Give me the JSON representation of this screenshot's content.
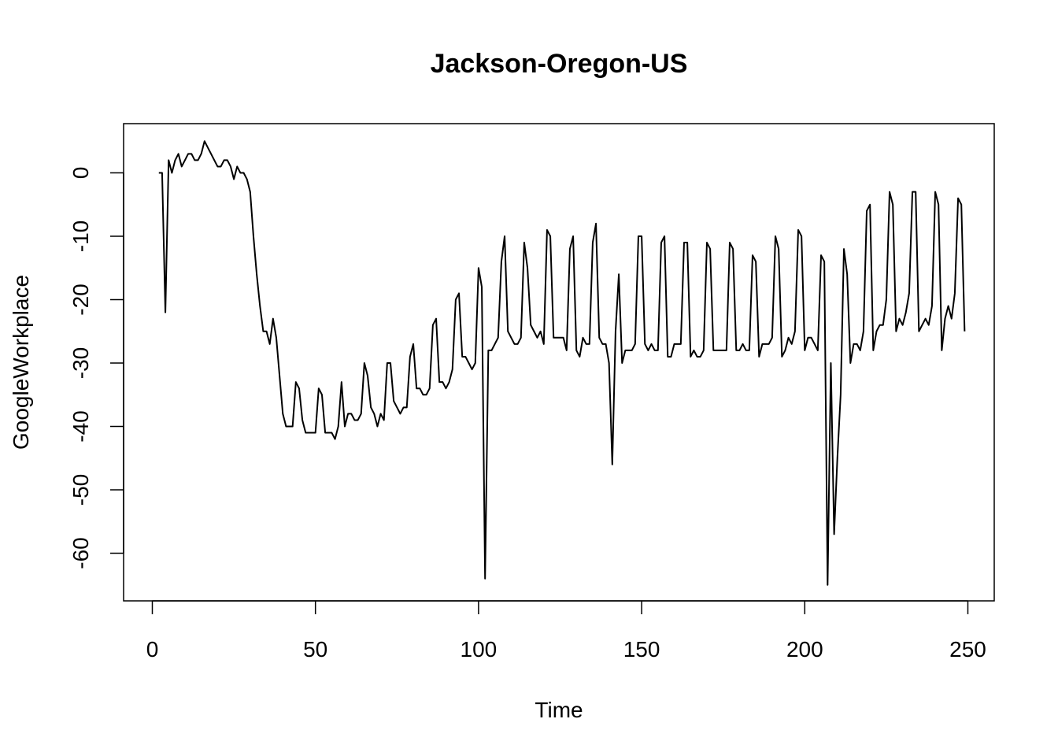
{
  "chart_data": {
    "type": "line",
    "title": "Jackson-Oregon-US",
    "xlabel": "Time",
    "ylabel": "GoogleWorkplace",
    "xlim": [
      0,
      250
    ],
    "ylim": [
      -65,
      5
    ],
    "x_ticks": [
      0,
      50,
      100,
      150,
      200,
      250
    ],
    "x_tick_labels": [
      "0",
      "50",
      "100",
      "150",
      "200",
      "250"
    ],
    "y_ticks": [
      0,
      -10,
      -20,
      -30,
      -40,
      -50,
      -60
    ],
    "y_tick_labels": [
      "0",
      "-10",
      "-20",
      "-30",
      "-40",
      "-50",
      "-60"
    ],
    "grid": false,
    "legend": "none",
    "line_color": "#000000",
    "series": [
      {
        "x_start": 2,
        "values": [
          0,
          0,
          -22,
          2,
          0,
          2,
          3,
          1,
          2,
          3,
          3,
          2,
          2,
          3,
          5,
          4,
          3,
          2,
          1,
          1,
          2,
          2,
          1,
          -1,
          1,
          0,
          0,
          -1,
          -3,
          -10,
          -16,
          -21,
          -25,
          -25,
          -27,
          -23,
          -26,
          -32,
          -38,
          -40,
          -40,
          -40,
          -33,
          -34,
          -39,
          -41,
          -41,
          -41,
          -41,
          -34,
          -35,
          -41,
          -41,
          -41,
          -42,
          -40,
          -33,
          -40,
          -38,
          -38,
          -39,
          -39,
          -38,
          -30,
          -32,
          -37,
          -38,
          -40,
          -38,
          -39,
          -30,
          -30,
          -36,
          -37,
          -38,
          -37,
          -37,
          -29,
          -27,
          -34,
          -34,
          -35,
          -35,
          -34,
          -24,
          -23,
          -33,
          -33,
          -34,
          -33,
          -31,
          -20,
          -19,
          -29,
          -29,
          -30,
          -31,
          -30,
          -15,
          -18,
          -64,
          -28,
          -28,
          -27,
          -26,
          -14,
          -10,
          -25,
          -26,
          -27,
          -27,
          -26,
          -11,
          -15,
          -24,
          -25,
          -26,
          -25,
          -27,
          -9,
          -10,
          -26,
          -26,
          -26,
          -26,
          -28,
          -12,
          -10,
          -28,
          -29,
          -26,
          -27,
          -27,
          -11,
          -8,
          -26,
          -27,
          -27,
          -30,
          -46,
          -25,
          -16,
          -30,
          -28,
          -28,
          -28,
          -27,
          -10,
          -10,
          -27,
          -28,
          -27,
          -28,
          -28,
          -11,
          -10,
          -29,
          -29,
          -27,
          -27,
          -27,
          -11,
          -11,
          -29,
          -28,
          -29,
          -29,
          -28,
          -11,
          -12,
          -28,
          -28,
          -28,
          -28,
          -28,
          -11,
          -12,
          -28,
          -28,
          -27,
          -28,
          -28,
          -13,
          -14,
          -29,
          -27,
          -27,
          -27,
          -26,
          -10,
          -12,
          -29,
          -28,
          -26,
          -27,
          -25,
          -9,
          -10,
          -28,
          -26,
          -26,
          -27,
          -28,
          -13,
          -14,
          -65,
          -30,
          -57,
          -45,
          -35,
          -12,
          -16,
          -30,
          -27,
          -27,
          -28,
          -25,
          -6,
          -5,
          -28,
          -25,
          -24,
          -24,
          -20,
          -3,
          -5,
          -25,
          -23,
          -24,
          -22,
          -19,
          -3,
          -3,
          -25,
          -24,
          -23,
          -24,
          -21,
          -3,
          -5,
          -28,
          -23,
          -21,
          -23,
          -19,
          -4,
          -5,
          -25
        ]
      }
    ]
  }
}
